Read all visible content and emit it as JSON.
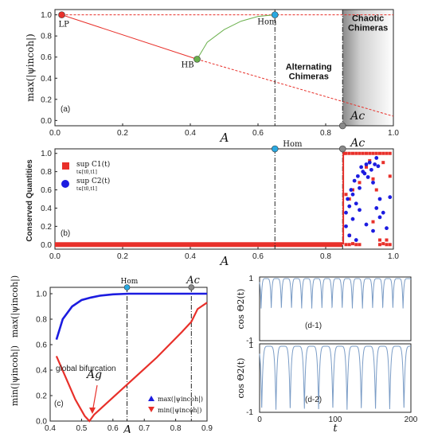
{
  "chart_data": [
    {
      "id": "a",
      "type": "line",
      "panel_label": "(a)",
      "xlabel": "A",
      "ylabel": "max(|ψincoh|)",
      "xlim": [
        0,
        1.0
      ],
      "ylim": [
        -0.05,
        1.05
      ],
      "xticks": [
        "0.0",
        "0.2",
        "0.4",
        "0.6",
        "0.8",
        "1.0"
      ],
      "yticks": [
        "0.0",
        "0.2",
        "0.4",
        "0.6",
        "0.8",
        "1.0"
      ],
      "series": [
        {
          "kind": "dashed-red-top",
          "color": "#e8302a",
          "x": [
            0.02,
            1.0
          ],
          "y": [
            1.0,
            1.0
          ]
        },
        {
          "kind": "solid-red-upper",
          "color": "#e8302a",
          "x": [
            0.02,
            0.42
          ],
          "y": [
            1.0,
            0.58
          ]
        },
        {
          "kind": "dashed-red-lower",
          "color": "#e8302a",
          "x": [
            0.42,
            1.0
          ],
          "y": [
            0.58,
            0.04
          ]
        },
        {
          "kind": "green-curve",
          "color": "#6ab04c",
          "x": [
            0.42,
            0.45,
            0.5,
            0.55,
            0.6,
            0.65
          ],
          "y": [
            0.58,
            0.74,
            0.86,
            0.94,
            0.985,
            1.0
          ]
        }
      ],
      "markers": [
        {
          "label": "LP",
          "x": 0.02,
          "y": 1.0,
          "color": "#e8302a"
        },
        {
          "label": "HB",
          "x": 0.42,
          "y": 0.58,
          "color": "#6ab04c"
        },
        {
          "label": "Hom",
          "x": 0.65,
          "y": 1.0,
          "color": "#29a8e0"
        },
        {
          "label": "Ac",
          "x": 0.85,
          "y": -0.05,
          "color": "#888888"
        }
      ],
      "vlines": [
        0.65,
        0.85
      ],
      "regions": [
        {
          "text": "Alternating",
          "x": 0.75,
          "y": 0.48
        },
        {
          "text": "Chimeras",
          "x": 0.75,
          "y": 0.39
        },
        {
          "text": "Chaotic",
          "x": 0.925,
          "y": 0.94
        },
        {
          "text": "Chimeras",
          "x": 0.925,
          "y": 0.85
        }
      ]
    },
    {
      "id": "b",
      "type": "scatter",
      "panel_label": "(b)",
      "xlabel": "A",
      "ylabel": "Conserved Quantities",
      "xlim": [
        0,
        1.0
      ],
      "ylim": [
        -0.05,
        1.05
      ],
      "xticks": [
        "0.0",
        "0.2",
        "0.4",
        "0.6",
        "0.8",
        "1.0"
      ],
      "yticks": [
        "0.0",
        "0.2",
        "0.4",
        "0.6",
        "0.8",
        "1.0"
      ],
      "legend": [
        {
          "text": "sup C1(t)",
          "sub": "t∈[t0,t1]",
          "color": "#e8302a",
          "shape": "square"
        },
        {
          "text": "sup C2(t)",
          "sub": "t∈[t0,t1]",
          "color": "#1c1ce0",
          "shape": "circle"
        }
      ],
      "baseline": {
        "x": [
          0.0,
          0.85
        ],
        "y": 0.0,
        "color": "#e8302a"
      },
      "markers": [
        {
          "label": "Hom",
          "x": 0.65,
          "color": "#29a8e0"
        },
        {
          "label": "Ac",
          "x": 0.85,
          "color": "#888888"
        }
      ],
      "vlines": [
        0.65,
        0.85
      ],
      "scatter_red": [
        [
          0.855,
          1.0
        ],
        [
          0.86,
          1.0
        ],
        [
          0.87,
          1.0
        ],
        [
          0.88,
          1.0
        ],
        [
          0.89,
          1.0
        ],
        [
          0.9,
          1.0
        ],
        [
          0.91,
          1.0
        ],
        [
          0.92,
          1.0
        ],
        [
          0.93,
          1.0
        ],
        [
          0.94,
          1.0
        ],
        [
          0.95,
          1.0
        ],
        [
          0.96,
          1.0
        ],
        [
          0.97,
          1.0
        ],
        [
          0.98,
          1.0
        ],
        [
          0.99,
          1.0
        ],
        [
          0.86,
          0.55
        ],
        [
          0.87,
          0.5
        ],
        [
          0.88,
          0.6
        ],
        [
          0.9,
          0.68
        ],
        [
          0.92,
          0.85
        ],
        [
          0.93,
          0.92
        ],
        [
          0.94,
          0.72
        ],
        [
          0.95,
          0.6
        ],
        [
          0.97,
          0.9
        ],
        [
          0.99,
          0.75
        ],
        [
          0.86,
          0.0
        ],
        [
          0.87,
          0.0
        ],
        [
          0.88,
          0.01
        ],
        [
          0.89,
          0.0
        ],
        [
          0.9,
          0.0
        ],
        [
          0.96,
          0.0
        ],
        [
          0.97,
          0.01
        ],
        [
          0.98,
          0.0
        ],
        [
          0.99,
          0.0
        ],
        [
          0.87,
          0.1
        ],
        [
          0.94,
          0.25
        ],
        [
          0.96,
          0.05
        ],
        [
          0.98,
          0.05
        ]
      ],
      "scatter_blue": [
        [
          0.86,
          0.35
        ],
        [
          0.865,
          0.5
        ],
        [
          0.87,
          0.42
        ],
        [
          0.875,
          0.6
        ],
        [
          0.88,
          0.55
        ],
        [
          0.885,
          0.7
        ],
        [
          0.89,
          0.45
        ],
        [
          0.895,
          0.75
        ],
        [
          0.9,
          0.62
        ],
        [
          0.905,
          0.85
        ],
        [
          0.91,
          0.8
        ],
        [
          0.915,
          0.78
        ],
        [
          0.92,
          0.88
        ],
        [
          0.925,
          0.74
        ],
        [
          0.93,
          0.9
        ],
        [
          0.935,
          0.82
        ],
        [
          0.94,
          0.68
        ],
        [
          0.945,
          0.88
        ],
        [
          0.95,
          0.95
        ],
        [
          0.955,
          0.86
        ],
        [
          0.96,
          0.5
        ],
        [
          0.97,
          0.35
        ],
        [
          0.98,
          0.18
        ],
        [
          0.99,
          0.52
        ],
        [
          0.88,
          0.28
        ],
        [
          0.9,
          0.38
        ],
        [
          0.92,
          0.22
        ],
        [
          0.94,
          0.15
        ],
        [
          0.96,
          0.3
        ],
        [
          0.86,
          0.2
        ],
        [
          0.87,
          0.1
        ],
        [
          0.89,
          0.05
        ],
        [
          0.95,
          0.4
        ]
      ]
    },
    {
      "id": "c",
      "type": "scatter",
      "panel_label": "(c)",
      "xlabel": "A",
      "ylabel_top": "max(|ψincoh|)",
      "ylabel_bottom": "min(|ψincoh|)",
      "xlim": [
        0.4,
        0.9
      ],
      "ylim": [
        0,
        1.05
      ],
      "xticks": [
        "0.4",
        "0.5",
        "0.6",
        "0.7",
        "0.8",
        "0.9"
      ],
      "yticks": [
        "0.0",
        "0.2",
        "0.4",
        "0.6",
        "0.8",
        "1.0"
      ],
      "annotations": {
        "global": "global bifurcation",
        "ag": "Ag",
        "hom": "Hom",
        "ac": "Ac"
      },
      "legend": [
        {
          "text": "max(|ψincoh|)",
          "color": "#1c1ce0",
          "shape": "up"
        },
        {
          "text": "min(|ψincoh|)",
          "color": "#e8302a",
          "shape": "down"
        }
      ],
      "max_curve": {
        "x": [
          0.42,
          0.44,
          0.47,
          0.5,
          0.53,
          0.56,
          0.6,
          0.65,
          0.9
        ],
        "y": [
          0.64,
          0.8,
          0.9,
          0.95,
          0.97,
          0.985,
          0.995,
          1.0,
          1.0
        ],
        "color": "#1c1ce0"
      },
      "min_curve": {
        "x": [
          0.42,
          0.45,
          0.48,
          0.51,
          0.525,
          0.54,
          0.58,
          0.62,
          0.66,
          0.7,
          0.74,
          0.78,
          0.82,
          0.85,
          0.87,
          0.9
        ],
        "y": [
          0.51,
          0.34,
          0.17,
          0.04,
          0.0,
          0.05,
          0.14,
          0.23,
          0.32,
          0.41,
          0.5,
          0.6,
          0.7,
          0.78,
          0.88,
          0.93
        ],
        "color": "#e8302a"
      },
      "vlines": [
        0.645,
        0.85
      ],
      "markers": [
        {
          "label": "Hom",
          "x": 0.645,
          "color": "#29a8e0"
        },
        {
          "label": "Ac",
          "x": 0.85,
          "color": "#888888"
        }
      ],
      "ag_point": {
        "x": 0.525,
        "y": 0.0
      }
    },
    {
      "id": "d1",
      "type": "line",
      "panel_label": "(d-1)",
      "xlabel": "",
      "ylabel": "cos Θ2(t)",
      "xlim": [
        0,
        200
      ],
      "ylim": [
        -1,
        1
      ],
      "yticks": [
        "-1",
        "1"
      ],
      "series": [
        {
          "kind": "cusp",
          "color": "#7a9cc6",
          "period": 13.4,
          "min": 0.0
        }
      ]
    },
    {
      "id": "d2",
      "type": "line",
      "panel_label": "(d-2)",
      "xlabel": "t",
      "ylabel": "cos Θ2(t)",
      "xlim": [
        0,
        200
      ],
      "ylim": [
        -1,
        1
      ],
      "xticks": [
        "0",
        "100",
        "200"
      ],
      "yticks": [
        "-1",
        "1"
      ],
      "series": [
        {
          "kind": "cusp",
          "color": "#7a9cc6",
          "period": 18.8,
          "min": -1.0
        }
      ]
    }
  ]
}
